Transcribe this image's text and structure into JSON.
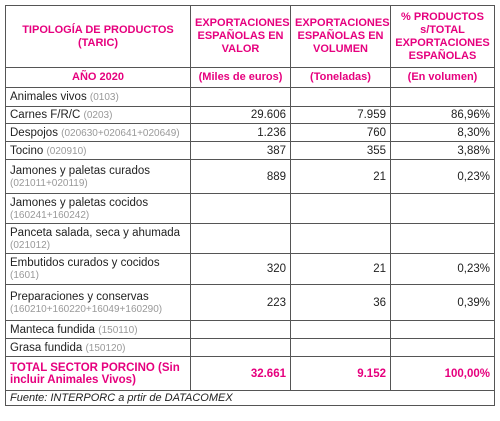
{
  "table": {
    "header": {
      "col1": "TIPOLOGÍA DE PRODUCTOS (TARIC)",
      "col2": "EXPORTACIONES ESPAÑOLAS EN VALOR",
      "col3": "EXPORTACIONES ESPAÑOLAS EN VOLUMEN",
      "col4": "% PRODUCTOS s/TOTAL EXPORTACIONES ESPAÑOLAS"
    },
    "subheader": {
      "col1": "AÑO 2020",
      "col2": "(Miles de euros)",
      "col3": "(Toneladas)",
      "col4": "(En volumen)"
    },
    "rows": [
      {
        "name": "Animales vivos",
        "code": "(0103)"
      },
      {
        "name": "Carnes F/R/C",
        "code": "(0203)",
        "value": "29.606",
        "volume": "7.959",
        "share": "86,96%"
      },
      {
        "name": "Despojos",
        "code": "(020630+020641+020649)",
        "value": "1.236",
        "volume": "760",
        "share": "8,30%"
      },
      {
        "name": "Tocino",
        "code": "(020910)",
        "value": "387",
        "volume": "355",
        "share": "3,88%"
      },
      {
        "name": "Jamones y paletas curados",
        "code": "(021011+020119)",
        "value": "889",
        "volume": "21",
        "share": "0,23%"
      },
      {
        "name": "Jamones y paletas cocidos",
        "code": "(160241+160242)"
      },
      {
        "name": "Panceta salada, seca y ahumada",
        "code": "(021012)"
      },
      {
        "name": "Embutidos curados y cocidos",
        "code": "(1601)",
        "value": "320",
        "volume": "21",
        "share": "0,23%"
      },
      {
        "name": "Preparaciones y conservas",
        "code": "(160210+160220+16049+160290)",
        "value": "223",
        "volume": "36",
        "share": "0,39%"
      },
      {
        "name": "Manteca fundida",
        "code": "(150110)"
      },
      {
        "name": "Grasa fundida",
        "code": "(150120)"
      }
    ],
    "total": {
      "name": "TOTAL SECTOR PORCINO (Sin incluir Animales Vivos)",
      "value": "32.661",
      "volume": "9.152",
      "share": "100,00%"
    },
    "source": "Fuente:  INTERPORC a prtir de DATACOMEX"
  }
}
